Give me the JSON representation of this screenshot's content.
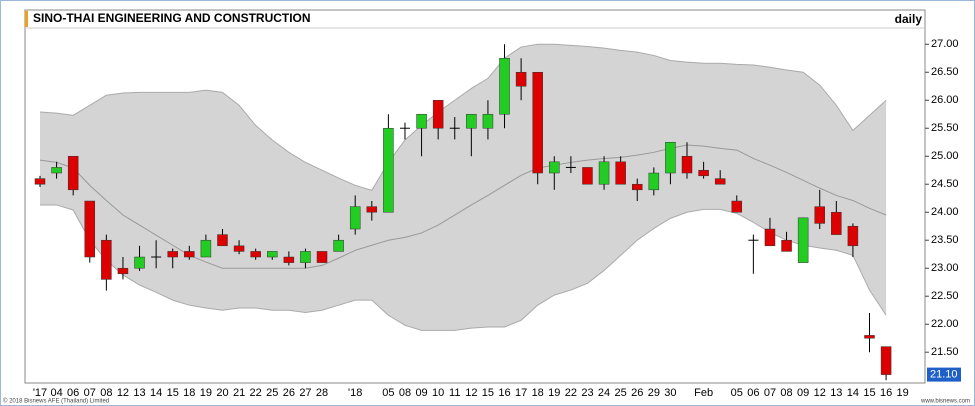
{
  "chart_data": {
    "type": "candlestick",
    "title": "SINO-THAI ENGINEERING AND CONSTRUCTION",
    "period": "daily",
    "copyright": "© 2018 Bisnews AFE (Thailand) Limited",
    "website": "www.bisnews.com",
    "x": [
      "'17",
      "04",
      "06",
      "07",
      "08",
      "12",
      "13",
      "14",
      "15",
      "18",
      "19",
      "20",
      "21",
      "22",
      "25",
      "26",
      "27",
      "28",
      null,
      "'18",
      null,
      "05",
      "08",
      "09",
      "10",
      "11",
      "12",
      "15",
      "16",
      "17",
      "18",
      "19",
      "22",
      "23",
      "24",
      "25",
      "26",
      "29",
      "30",
      null,
      "Feb",
      null,
      "05",
      "06",
      "07",
      "08",
      "09",
      "12",
      "13",
      "14",
      "15",
      "16",
      "19"
    ],
    "open": [
      24.6,
      24.7,
      25.0,
      24.2,
      23.5,
      23.0,
      23.0,
      23.2,
      23.3,
      23.3,
      23.2,
      23.6,
      23.4,
      23.3,
      23.2,
      23.2,
      23.1,
      23.3,
      23.3,
      23.7,
      24.1,
      24.0,
      25.5,
      25.5,
      26.0,
      25.5,
      25.5,
      25.5,
      25.75,
      26.5,
      26.5,
      24.7,
      24.8,
      24.8,
      24.5,
      24.9,
      24.5,
      24.4,
      24.7,
      25.0,
      24.75,
      24.6,
      24.2,
      23.5,
      23.7,
      23.5,
      23.1,
      24.1,
      24.0,
      23.75,
      21.8,
      21.6,
      null
    ],
    "high": [
      24.65,
      24.9,
      25.0,
      24.2,
      23.6,
      23.2,
      23.4,
      23.5,
      23.35,
      23.4,
      23.6,
      23.7,
      23.5,
      23.35,
      23.3,
      23.3,
      23.35,
      23.3,
      23.6,
      24.3,
      24.2,
      25.75,
      25.6,
      25.75,
      26.0,
      25.7,
      25.75,
      26.0,
      27.0,
      26.75,
      26.5,
      25.0,
      25.0,
      24.8,
      25.0,
      25.0,
      24.6,
      24.8,
      25.25,
      25.25,
      24.9,
      24.75,
      24.3,
      23.6,
      23.9,
      23.65,
      23.9,
      24.4,
      24.2,
      23.8,
      22.2,
      21.6,
      null
    ],
    "low": [
      24.45,
      24.6,
      24.3,
      23.1,
      22.6,
      22.8,
      22.95,
      23.0,
      23.0,
      23.15,
      23.2,
      23.4,
      23.25,
      23.15,
      23.15,
      23.05,
      23.0,
      23.1,
      23.3,
      23.6,
      23.85,
      24.0,
      25.3,
      25.0,
      25.3,
      25.3,
      25.0,
      25.3,
      25.5,
      26.0,
      24.5,
      24.4,
      24.7,
      24.5,
      24.4,
      24.5,
      24.2,
      24.3,
      24.5,
      24.6,
      24.6,
      24.5,
      24.0,
      22.9,
      23.4,
      23.3,
      23.1,
      23.7,
      23.6,
      23.2,
      21.5,
      21.0,
      null
    ],
    "close": [
      24.5,
      24.8,
      24.4,
      23.2,
      22.8,
      22.9,
      23.2,
      23.2,
      23.2,
      23.2,
      23.5,
      23.4,
      23.3,
      23.2,
      23.3,
      23.1,
      23.3,
      23.1,
      23.5,
      24.1,
      24.0,
      25.5,
      25.5,
      25.75,
      25.5,
      25.5,
      25.75,
      25.75,
      26.75,
      26.25,
      24.7,
      24.9,
      24.8,
      24.5,
      24.9,
      24.5,
      24.4,
      24.7,
      25.25,
      24.7,
      24.65,
      24.5,
      24.0,
      23.5,
      23.4,
      23.3,
      23.9,
      23.8,
      23.6,
      23.4,
      21.75,
      21.1,
      null
    ],
    "bands": {
      "color": "#d4d4d4",
      "upper": [
        25.79,
        25.77,
        25.73,
        25.91,
        26.09,
        26.13,
        26.14,
        26.14,
        26.14,
        26.14,
        26.18,
        26.14,
        25.91,
        25.55,
        25.29,
        25.07,
        24.89,
        24.75,
        24.61,
        24.48,
        24.39,
        24.89,
        25.29,
        25.55,
        25.79,
        26.0,
        26.21,
        26.39,
        26.75,
        26.95,
        27.0,
        27.0,
        26.98,
        26.96,
        26.93,
        26.89,
        26.86,
        26.8,
        26.71,
        26.68,
        26.66,
        26.66,
        26.64,
        26.63,
        26.59,
        26.54,
        26.5,
        26.27,
        25.91,
        25.46,
        25.73,
        26.0,
        null
      ],
      "middle": [
        24.93,
        24.89,
        24.79,
        24.48,
        24.21,
        23.95,
        23.77,
        23.59,
        23.41,
        23.23,
        23.11,
        23.0,
        23.0,
        23.0,
        23.0,
        23.0,
        23.0,
        23.05,
        23.18,
        23.32,
        23.41,
        23.5,
        23.55,
        23.63,
        23.77,
        23.95,
        24.13,
        24.3,
        24.48,
        24.66,
        24.79,
        24.84,
        24.89,
        24.93,
        24.96,
        24.98,
        25.02,
        25.07,
        25.14,
        25.2,
        25.18,
        25.14,
        25.11,
        24.96,
        24.84,
        24.71,
        24.57,
        24.43,
        24.3,
        24.21,
        24.07,
        23.95,
        null
      ],
      "lower": [
        24.13,
        24.13,
        24.04,
        23.5,
        23.14,
        22.88,
        22.7,
        22.57,
        22.43,
        22.34,
        22.29,
        22.25,
        22.29,
        22.29,
        22.25,
        22.25,
        22.21,
        22.25,
        22.34,
        22.43,
        22.43,
        22.16,
        21.98,
        21.89,
        21.89,
        21.89,
        21.93,
        21.95,
        21.95,
        22.07,
        22.34,
        22.52,
        22.61,
        22.73,
        22.96,
        23.23,
        23.5,
        23.71,
        23.89,
        24.0,
        24.05,
        24.05,
        23.98,
        23.82,
        23.64,
        23.5,
        23.41,
        23.36,
        23.32,
        23.23,
        22.61,
        22.16,
        null
      ]
    },
    "up_color": "#22cc22",
    "down_color": "#dd0000",
    "last_price": {
      "value": 21.1,
      "label": "21.10",
      "color": "#1e5fc8"
    },
    "ylim": [
      20.95,
      27.29
    ],
    "yticks": [
      {
        "value": 21.5,
        "label": "21.50"
      },
      {
        "value": 22,
        "label": "22.00"
      },
      {
        "value": 22.5,
        "label": "22.50"
      },
      {
        "value": 23,
        "label": "23.00"
      },
      {
        "value": 23.5,
        "label": "23.50"
      },
      {
        "value": 24,
        "label": "24.00"
      },
      {
        "value": 24.5,
        "label": "24.50"
      },
      {
        "value": 25,
        "label": "25.00"
      },
      {
        "value": 25.5,
        "label": "25.50"
      },
      {
        "value": 26,
        "label": "26.00"
      },
      {
        "value": 26.5,
        "label": "26.50"
      },
      {
        "value": 27,
        "label": "27.00"
      }
    ]
  }
}
